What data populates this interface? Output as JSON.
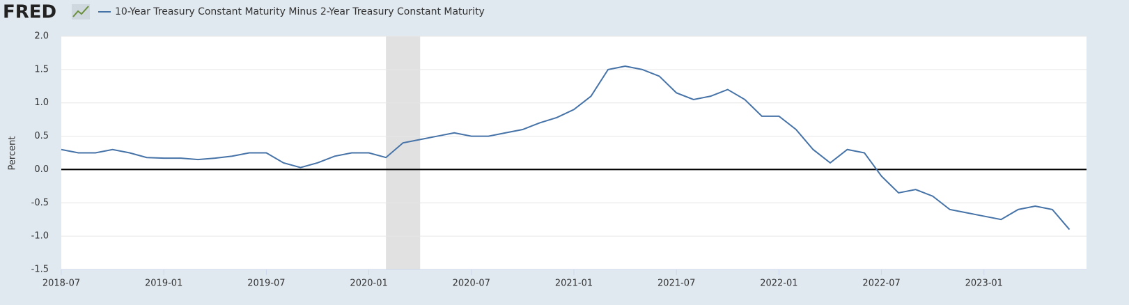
{
  "logo": "FRED",
  "chart_data": {
    "type": "line",
    "title": "10-Year Treasury Constant Maturity Minus 2-Year Treasury Constant Maturity",
    "y_label": "Percent",
    "x": [
      "2018-07",
      "2018-08",
      "2018-09",
      "2018-10",
      "2018-11",
      "2018-12",
      "2019-01",
      "2019-02",
      "2019-03",
      "2019-04",
      "2019-05",
      "2019-06",
      "2019-07",
      "2019-08",
      "2019-09",
      "2019-10",
      "2019-11",
      "2019-12",
      "2020-01",
      "2020-02",
      "2020-03",
      "2020-04",
      "2020-05",
      "2020-06",
      "2020-07",
      "2020-08",
      "2020-09",
      "2020-10",
      "2020-11",
      "2020-12",
      "2021-01",
      "2021-02",
      "2021-03",
      "2021-04",
      "2021-05",
      "2021-06",
      "2021-07",
      "2021-08",
      "2021-09",
      "2021-10",
      "2021-11",
      "2021-12",
      "2022-01",
      "2022-02",
      "2022-03",
      "2022-04",
      "2022-05",
      "2022-06",
      "2022-07",
      "2022-08",
      "2022-09",
      "2022-10",
      "2022-11",
      "2022-12",
      "2023-01",
      "2023-02",
      "2023-03",
      "2023-04",
      "2023-05",
      "2023-06"
    ],
    "series": [
      {
        "name": "10-Year Treasury Constant Maturity Minus 2-Year Treasury Constant Maturity",
        "color": "#4572a7",
        "values": [
          0.3,
          0.25,
          0.25,
          0.3,
          0.25,
          0.18,
          0.17,
          0.17,
          0.15,
          0.17,
          0.2,
          0.25,
          0.25,
          0.1,
          0.03,
          0.1,
          0.2,
          0.25,
          0.25,
          0.18,
          0.4,
          0.45,
          0.5,
          0.55,
          0.5,
          0.5,
          0.55,
          0.6,
          0.7,
          0.78,
          0.9,
          1.1,
          1.5,
          1.55,
          1.5,
          1.4,
          1.15,
          1.05,
          1.1,
          1.2,
          1.05,
          0.8,
          0.8,
          0.6,
          0.3,
          0.1,
          0.3,
          0.25,
          -0.1,
          -0.35,
          -0.3,
          -0.4,
          -0.6,
          -0.65,
          -0.7,
          -0.75,
          -0.6,
          -0.55,
          -0.6,
          -0.9
        ]
      }
    ],
    "xlim": [
      "2018-07",
      "2023-07"
    ],
    "xticks": [
      "2018-07",
      "2019-01",
      "2019-07",
      "2020-01",
      "2020-07",
      "2021-01",
      "2021-07",
      "2022-01",
      "2022-07",
      "2023-01"
    ],
    "ylim": [
      -1.5,
      2.0
    ],
    "yticks": [
      {
        "value": -1.5,
        "label": "-1.5"
      },
      {
        "value": -1,
        "label": "-1.0"
      },
      {
        "value": -0.5,
        "label": "-0.5"
      },
      {
        "value": 0,
        "label": "0.0"
      },
      {
        "value": 0.5,
        "label": "0.5"
      },
      {
        "value": 1,
        "label": "1.0"
      },
      {
        "value": 1.5,
        "label": "1.5"
      },
      {
        "value": 2,
        "label": "2.0"
      }
    ],
    "grid": true,
    "zero_line": true,
    "recession": [
      "2020-02",
      "2020-04"
    ]
  }
}
